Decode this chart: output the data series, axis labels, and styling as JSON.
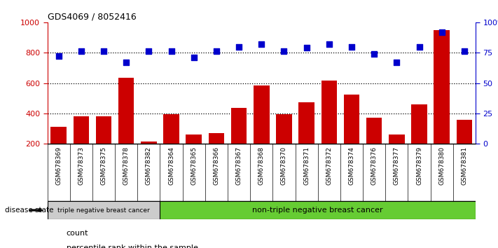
{
  "title": "GDS4069 / 8052416",
  "samples": [
    "GSM678369",
    "GSM678373",
    "GSM678375",
    "GSM678378",
    "GSM678382",
    "GSM678364",
    "GSM678365",
    "GSM678366",
    "GSM678367",
    "GSM678368",
    "GSM678370",
    "GSM678371",
    "GSM678372",
    "GSM678374",
    "GSM678376",
    "GSM678377",
    "GSM678379",
    "GSM678380",
    "GSM678381"
  ],
  "counts": [
    310,
    380,
    380,
    635,
    215,
    395,
    260,
    270,
    435,
    585,
    395,
    475,
    615,
    525,
    370,
    260,
    460,
    950,
    360
  ],
  "percentiles": [
    72,
    76,
    76,
    67,
    76,
    76,
    71,
    76,
    80,
    82,
    76,
    79,
    82,
    80,
    74,
    67,
    80,
    92,
    76
  ],
  "group1_count": 5,
  "group1_label": "triple negative breast cancer",
  "group2_label": "non-triple negative breast cancer",
  "ylim_left": [
    200,
    1000
  ],
  "ylim_right": [
    0,
    100
  ],
  "yticks_left": [
    200,
    400,
    600,
    800,
    1000
  ],
  "yticks_right": [
    0,
    25,
    50,
    75,
    100
  ],
  "bar_color": "#cc0000",
  "dot_color": "#0000cc",
  "group1_bg": "#cccccc",
  "group2_bg": "#66cc33",
  "legend_count_label": "count",
  "legend_pct_label": "percentile rank within the sample",
  "disease_state_label": "disease state"
}
